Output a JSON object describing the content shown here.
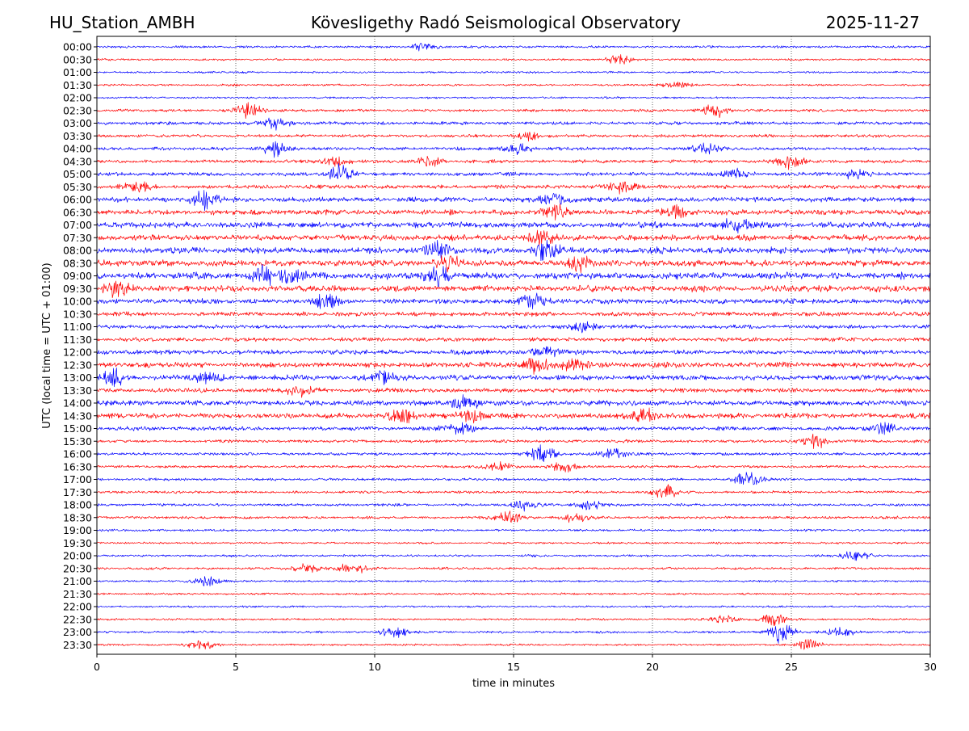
{
  "header": {
    "station": "HU_Station_AMBH",
    "observatory": "Kövesligethy Radó Seismological Observatory",
    "date": "2025-11-27"
  },
  "chart_data": {
    "type": "line",
    "subtype": "helicorder",
    "xlabel": "time in minutes",
    "ylabel": "UTC (local time = UTC + 01:00)",
    "xlim": [
      0,
      30
    ],
    "x_ticks": [
      "0",
      "5",
      "10",
      "15",
      "20",
      "25",
      "30"
    ],
    "grid": "vertical dotted lines at x ticks",
    "row_labels": [
      "00:00",
      "00:30",
      "01:00",
      "01:30",
      "02:00",
      "02:30",
      "03:00",
      "03:30",
      "04:00",
      "04:30",
      "05:00",
      "05:30",
      "06:00",
      "06:30",
      "07:00",
      "07:30",
      "08:00",
      "08:30",
      "09:00",
      "09:30",
      "10:00",
      "10:30",
      "11:00",
      "11:30",
      "12:00",
      "12:30",
      "13:00",
      "13:30",
      "14:00",
      "14:30",
      "15:00",
      "15:30",
      "16:00",
      "16:30",
      "17:00",
      "17:30",
      "18:00",
      "18:30",
      "19:00",
      "19:30",
      "20:00",
      "20:30",
      "21:00",
      "21:30",
      "22:00",
      "22:30",
      "23:00",
      "23:30"
    ],
    "colors": [
      "#0000ff",
      "#ff0000"
    ],
    "row_noise_level": [
      0.7,
      0.6,
      0.6,
      0.6,
      0.6,
      0.8,
      1.0,
      0.9,
      1.0,
      1.0,
      1.1,
      1.2,
      1.5,
      1.6,
      1.8,
      1.8,
      1.9,
      1.9,
      2.0,
      1.9,
      1.5,
      1.3,
      1.2,
      1.2,
      1.4,
      1.6,
      1.6,
      1.3,
      1.6,
      1.6,
      1.2,
      0.9,
      0.9,
      0.8,
      0.8,
      0.8,
      0.8,
      0.8,
      0.7,
      0.6,
      0.7,
      0.7,
      0.6,
      0.6,
      0.6,
      0.6,
      0.7,
      0.6
    ],
    "events": [
      {
        "row": "00:00",
        "minute": 11.8,
        "amplitude": 1.4
      },
      {
        "row": "00:30",
        "minute": 18.8,
        "amplitude": 1.3
      },
      {
        "row": "01:30",
        "minute": 20.8,
        "amplitude": 1.3
      },
      {
        "row": "02:30",
        "minute": 5.5,
        "amplitude": 2.2
      },
      {
        "row": "02:30",
        "minute": 22.2,
        "amplitude": 2.3
      },
      {
        "row": "03:00",
        "minute": 6.5,
        "amplitude": 1.6
      },
      {
        "row": "03:30",
        "minute": 15.5,
        "amplitude": 1.4
      },
      {
        "row": "04:00",
        "minute": 6.4,
        "amplitude": 2.0
      },
      {
        "row": "04:00",
        "minute": 15.2,
        "amplitude": 1.7
      },
      {
        "row": "04:00",
        "minute": 22.0,
        "amplitude": 1.7
      },
      {
        "row": "04:30",
        "minute": 8.6,
        "amplitude": 1.6
      },
      {
        "row": "04:30",
        "minute": 12.0,
        "amplitude": 1.5
      },
      {
        "row": "04:30",
        "minute": 25.0,
        "amplitude": 2.2
      },
      {
        "row": "05:00",
        "minute": 8.8,
        "amplitude": 3.0
      },
      {
        "row": "05:00",
        "minute": 23.0,
        "amplitude": 1.7
      },
      {
        "row": "05:00",
        "minute": 27.2,
        "amplitude": 1.7
      },
      {
        "row": "05:30",
        "minute": 1.5,
        "amplitude": 2.2
      },
      {
        "row": "05:30",
        "minute": 19.0,
        "amplitude": 2.0
      },
      {
        "row": "06:00",
        "minute": 3.9,
        "amplitude": 3.2
      },
      {
        "row": "06:00",
        "minute": 16.5,
        "amplitude": 1.6
      },
      {
        "row": "06:30",
        "minute": 20.8,
        "amplitude": 2.0
      },
      {
        "row": "06:30",
        "minute": 16.5,
        "amplitude": 1.8
      },
      {
        "row": "07:00",
        "minute": 23.0,
        "amplitude": 2.0
      },
      {
        "row": "07:30",
        "minute": 16.0,
        "amplitude": 2.0
      },
      {
        "row": "08:00",
        "minute": 12.3,
        "amplitude": 2.4
      },
      {
        "row": "08:00",
        "minute": 16.2,
        "amplitude": 2.6
      },
      {
        "row": "08:30",
        "minute": 12.6,
        "amplitude": 2.3
      },
      {
        "row": "08:30",
        "minute": 17.5,
        "amplitude": 2.0
      },
      {
        "row": "09:00",
        "minute": 6.0,
        "amplitude": 2.6
      },
      {
        "row": "09:00",
        "minute": 7.1,
        "amplitude": 2.2
      },
      {
        "row": "09:00",
        "minute": 12.3,
        "amplitude": 2.6
      },
      {
        "row": "09:30",
        "minute": 0.8,
        "amplitude": 2.3
      },
      {
        "row": "10:00",
        "minute": 8.3,
        "amplitude": 1.9
      },
      {
        "row": "10:00",
        "minute": 15.7,
        "amplitude": 2.2
      },
      {
        "row": "11:00",
        "minute": 17.5,
        "amplitude": 1.8
      },
      {
        "row": "12:00",
        "minute": 16.2,
        "amplitude": 2.0
      },
      {
        "row": "12:30",
        "minute": 15.8,
        "amplitude": 2.6
      },
      {
        "row": "12:30",
        "minute": 17.2,
        "amplitude": 2.0
      },
      {
        "row": "13:00",
        "minute": 0.6,
        "amplitude": 2.4
      },
      {
        "row": "13:00",
        "minute": 4.0,
        "amplitude": 2.0
      },
      {
        "row": "13:00",
        "minute": 10.3,
        "amplitude": 1.8
      },
      {
        "row": "13:30",
        "minute": 7.3,
        "amplitude": 1.8
      },
      {
        "row": "14:00",
        "minute": 13.2,
        "amplitude": 2.2
      },
      {
        "row": "14:30",
        "minute": 11.0,
        "amplitude": 2.4
      },
      {
        "row": "14:30",
        "minute": 13.5,
        "amplitude": 2.6
      },
      {
        "row": "14:30",
        "minute": 19.8,
        "amplitude": 2.2
      },
      {
        "row": "15:00",
        "minute": 13.0,
        "amplitude": 2.6
      },
      {
        "row": "15:00",
        "minute": 28.3,
        "amplitude": 2.2
      },
      {
        "row": "15:30",
        "minute": 25.8,
        "amplitude": 2.4
      },
      {
        "row": "16:00",
        "minute": 16.0,
        "amplitude": 2.4
      },
      {
        "row": "16:00",
        "minute": 18.5,
        "amplitude": 1.9
      },
      {
        "row": "16:30",
        "minute": 14.5,
        "amplitude": 1.8
      },
      {
        "row": "16:30",
        "minute": 16.8,
        "amplitude": 1.6
      },
      {
        "row": "17:00",
        "minute": 23.5,
        "amplitude": 2.8
      },
      {
        "row": "17:30",
        "minute": 20.5,
        "amplitude": 2.0
      },
      {
        "row": "18:00",
        "minute": 15.5,
        "amplitude": 1.8
      },
      {
        "row": "18:00",
        "minute": 17.8,
        "amplitude": 1.6
      },
      {
        "row": "18:30",
        "minute": 14.8,
        "amplitude": 2.0
      },
      {
        "row": "18:30",
        "minute": 17.2,
        "amplitude": 1.8
      },
      {
        "row": "20:00",
        "minute": 27.3,
        "amplitude": 1.8
      },
      {
        "row": "20:30",
        "minute": 7.5,
        "amplitude": 1.7
      },
      {
        "row": "20:30",
        "minute": 9.2,
        "amplitude": 2.0
      },
      {
        "row": "21:00",
        "minute": 4.0,
        "amplitude": 2.0
      },
      {
        "row": "22:30",
        "minute": 22.5,
        "amplitude": 1.6
      },
      {
        "row": "22:30",
        "minute": 24.3,
        "amplitude": 2.0
      },
      {
        "row": "23:00",
        "minute": 10.7,
        "amplitude": 1.8
      },
      {
        "row": "23:00",
        "minute": 24.6,
        "amplitude": 3.4
      },
      {
        "row": "23:00",
        "minute": 26.8,
        "amplitude": 1.8
      },
      {
        "row": "23:30",
        "minute": 3.7,
        "amplitude": 1.8
      },
      {
        "row": "23:30",
        "minute": 25.6,
        "amplitude": 1.6
      }
    ]
  }
}
